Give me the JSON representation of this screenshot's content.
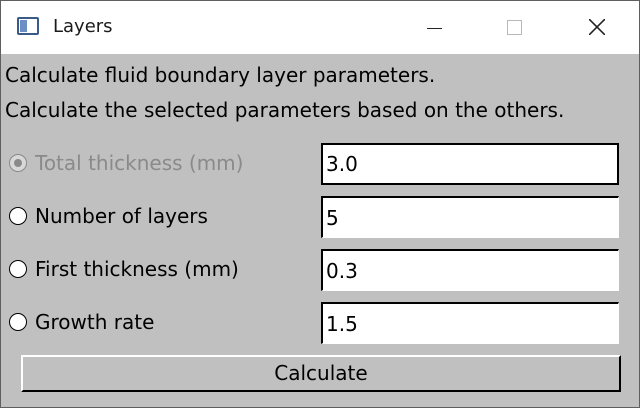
{
  "window": {
    "title": "Layers",
    "icon": "app-window-icon"
  },
  "description": {
    "line1": "Calculate fluid boundary layer parameters.",
    "line2": "Calculate the selected parameters based on the others."
  },
  "params": [
    {
      "label": "Total thickness (mm)",
      "value": "3.0",
      "selected": true,
      "disabled": true
    },
    {
      "label": "Number of layers",
      "value": "5",
      "selected": false,
      "disabled": false
    },
    {
      "label": "First thickness (mm)",
      "value": "0.3",
      "selected": false,
      "disabled": false
    },
    {
      "label": "Growth rate",
      "value": "1.5",
      "selected": false,
      "disabled": false
    }
  ],
  "calculate_button": {
    "label": "Calculate"
  }
}
